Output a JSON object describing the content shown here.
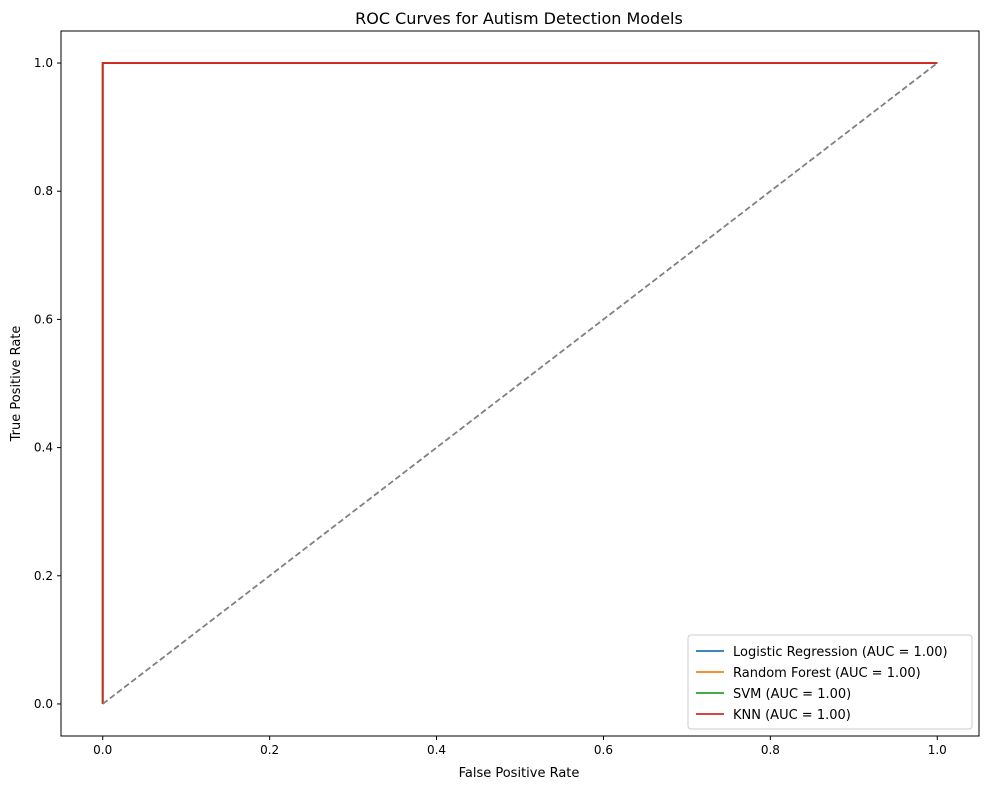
{
  "chart_data": {
    "type": "line",
    "title": "ROC Curves for Autism Detection Models",
    "xlabel": "False Positive Rate",
    "ylabel": "True Positive Rate",
    "xlim": [
      -0.05,
      1.05
    ],
    "ylim": [
      -0.05,
      1.05
    ],
    "xticks": [
      "0.0",
      "0.2",
      "0.4",
      "0.6",
      "0.8",
      "1.0"
    ],
    "yticks": [
      "0.0",
      "0.2",
      "0.4",
      "0.6",
      "0.8",
      "1.0"
    ],
    "grid": false,
    "legend_position": "lower-right",
    "series": [
      {
        "name": "Logistic Regression (AUC = 1.00)",
        "color": "#1f77b4",
        "x": [
          0,
          0,
          1
        ],
        "y": [
          0,
          1,
          1
        ]
      },
      {
        "name": "Random Forest (AUC = 1.00)",
        "color": "#ff7f0e",
        "x": [
          0,
          0,
          1
        ],
        "y": [
          0,
          1,
          1
        ]
      },
      {
        "name": "SVM (AUC = 1.00)",
        "color": "#2ca02c",
        "x": [
          0,
          0,
          1
        ],
        "y": [
          0,
          1,
          1
        ]
      },
      {
        "name": "KNN (AUC = 1.00)",
        "color": "#d62728",
        "x": [
          0,
          0,
          1
        ],
        "y": [
          0,
          1,
          1
        ]
      }
    ],
    "reference_line": {
      "x": [
        0,
        1
      ],
      "y": [
        0,
        1
      ],
      "color": "#808080",
      "style": "dashed"
    }
  }
}
